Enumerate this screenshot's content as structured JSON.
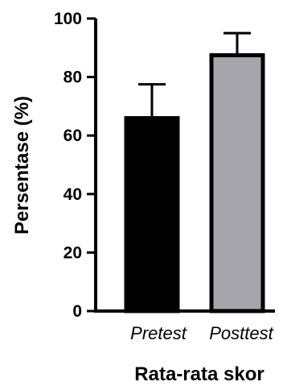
{
  "chart_data": {
    "type": "bar",
    "title": "",
    "xlabel": "Rata-rata skor",
    "ylabel": "Persentase (%)",
    "ylim": [
      0,
      100
    ],
    "yticks": [
      "0",
      "20",
      "40",
      "60",
      "80",
      "100"
    ],
    "grid": false,
    "categories": [
      "Pretest",
      "Posttest"
    ],
    "values": [
      66.5,
      88
    ],
    "error_upper": [
      77.5,
      95
    ],
    "colors": {
      "bar_fill": [
        "#000000",
        "#a6a5ab"
      ],
      "bar_stroke": "#000000",
      "axis": "#000000"
    }
  }
}
